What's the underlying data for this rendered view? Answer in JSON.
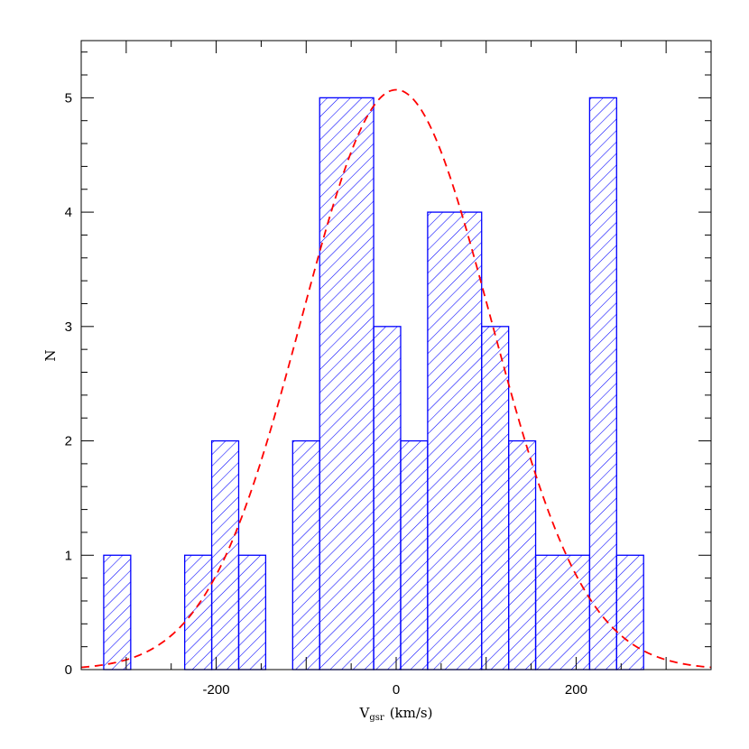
{
  "chart_data": {
    "type": "bar",
    "histogram": true,
    "bin_width": 30,
    "bins": [
      {
        "x_start": -325,
        "x_end": -295,
        "count": 1
      },
      {
        "x_start": -235,
        "x_end": -205,
        "count": 1
      },
      {
        "x_start": -205,
        "x_end": -175,
        "count": 2
      },
      {
        "x_start": -175,
        "x_end": -145,
        "count": 1
      },
      {
        "x_start": -115,
        "x_end": -85,
        "count": 2
      },
      {
        "x_start": -85,
        "x_end": -25,
        "count": 5
      },
      {
        "x_start": -25,
        "x_end": 5,
        "count": 3
      },
      {
        "x_start": 5,
        "x_end": 35,
        "count": 2
      },
      {
        "x_start": 35,
        "x_end": 95,
        "count": 4
      },
      {
        "x_start": 95,
        "x_end": 125,
        "count": 3
      },
      {
        "x_start": 125,
        "x_end": 155,
        "count": 2
      },
      {
        "x_start": 155,
        "x_end": 215,
        "count": 1
      },
      {
        "x_start": 215,
        "x_end": 245,
        "count": 5
      },
      {
        "x_start": 245,
        "x_end": 275,
        "count": 1
      }
    ],
    "fit_curve": {
      "type": "gaussian",
      "amplitude": 5.07,
      "mean": 0,
      "sigma": 105
    },
    "xlabel": "V",
    "xlabel_subscript": "gsr",
    "xlabel_units": "(km/s)",
    "ylabel": "N",
    "xlim": [
      -350,
      350
    ],
    "ylim": [
      0,
      5.5
    ],
    "x_ticks": [
      -200,
      0,
      200
    ],
    "y_ticks": [
      0,
      1,
      2,
      3,
      4,
      5
    ],
    "grid": false,
    "colors": {
      "bars": "#0000ff",
      "fit": "#ff0000"
    }
  }
}
